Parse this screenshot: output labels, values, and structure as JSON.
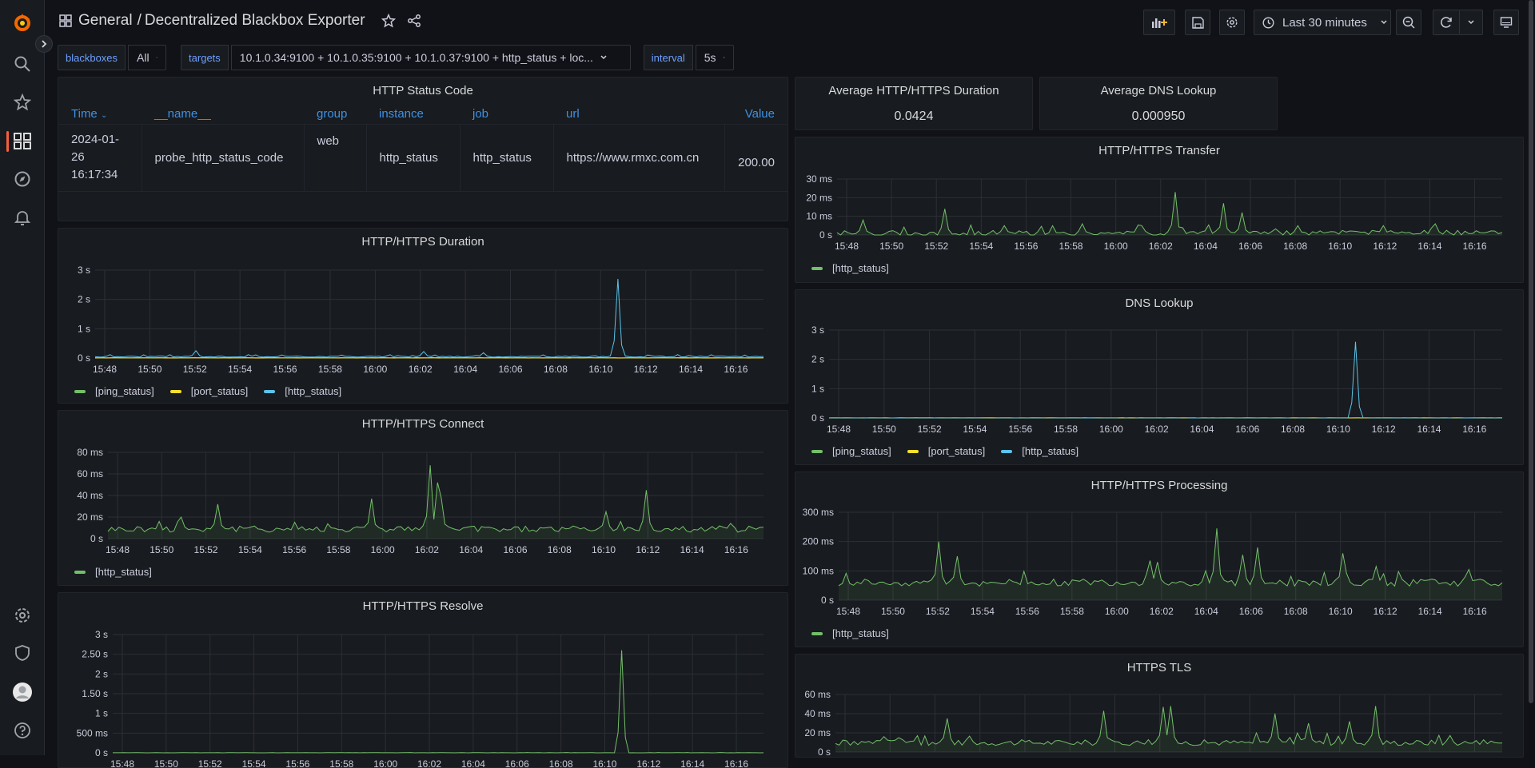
{
  "app": {
    "breadcrumb_root": "General",
    "breadcrumb_sep": "/",
    "dashboard_title": "Decentralized Blackbox Exporter",
    "time_range": "Last 30 minutes"
  },
  "variables": [
    {
      "label": "blackboxes",
      "value": "All"
    },
    {
      "label": "targets",
      "value": "10.1.0.34:9100 + 10.1.0.35:9100 + 10.1.0.37:9100 + http_status + loc..."
    },
    {
      "label": "interval",
      "value": "5s"
    }
  ],
  "colors": {
    "green": "#73bf69",
    "yellow": "#fade2a",
    "blue": "#5ac4eb",
    "accent": "#f55f3e",
    "link": "#3d91e6"
  },
  "status_table": {
    "title": "HTTP Status Code",
    "columns": [
      "Time",
      "__name__",
      "group",
      "instance",
      "job",
      "url",
      "Value"
    ],
    "rows": [
      {
        "time_line1": "2024-01-",
        "time_line2": "26",
        "time_line3": "16:17:34",
        "name": "probe_http_status_code",
        "group": "web",
        "instance": "http_status",
        "job": "http_status",
        "url": "https://www.rmxc.com.cn",
        "value": "200.00"
      }
    ]
  },
  "stats": {
    "http_duration": {
      "title": "Average HTTP/HTTPS Duration",
      "value": "0.0424"
    },
    "dns_lookup": {
      "title": "Average DNS Lookup",
      "value": "0.000950"
    }
  },
  "time_axis": [
    "15:48",
    "15:50",
    "15:52",
    "15:54",
    "15:56",
    "15:58",
    "16:00",
    "16:02",
    "16:04",
    "16:06",
    "16:08",
    "16:10",
    "16:12",
    "16:14",
    "16:16"
  ],
  "chart_data": [
    {
      "id": "duration",
      "type": "line",
      "title": "HTTP/HTTPS Duration",
      "y_ticks": [
        "3 s",
        "2 s",
        "1 s",
        "0 s"
      ],
      "ylim": [
        0,
        3
      ],
      "series": [
        {
          "name": "[ping_status]",
          "color": "#73bf69",
          "base": 0.01,
          "noise": 0.004,
          "spikes": []
        },
        {
          "name": "[port_status]",
          "color": "#fade2a",
          "base": 0.002,
          "noise": 0.001,
          "spikes": []
        },
        {
          "name": "[http_status]",
          "color": "#5ac4eb",
          "base": 0.05,
          "noise": 0.02,
          "spikes": [
            [
              0.15,
              0.25
            ],
            [
              0.37,
              0.1
            ],
            [
              0.49,
              0.22
            ],
            [
              0.58,
              0.18
            ],
            [
              0.78,
              2.7
            ],
            [
              0.83,
              0.08
            ]
          ]
        }
      ]
    },
    {
      "id": "connect",
      "type": "area",
      "title": "HTTP/HTTPS Connect",
      "y_ticks": [
        "80 ms",
        "60 ms",
        "40 ms",
        "20 ms",
        "0 s"
      ],
      "ylim": [
        0,
        80
      ],
      "series": [
        {
          "name": "[http_status]",
          "color": "#73bf69",
          "base": 9,
          "noise": 3,
          "spikes": [
            [
              0.11,
              20
            ],
            [
              0.17,
              32
            ],
            [
              0.4,
              37
            ],
            [
              0.49,
              68
            ],
            [
              0.5,
              52
            ],
            [
              0.51,
              38
            ],
            [
              0.76,
              25
            ],
            [
              0.82,
              45
            ]
          ]
        }
      ]
    },
    {
      "id": "resolve",
      "type": "line",
      "title": "HTTP/HTTPS Resolve",
      "y_ticks": [
        "3 s",
        "2.50 s",
        "2 s",
        "1.50 s",
        "1 s",
        "500 ms",
        "0 s"
      ],
      "ylim": [
        0,
        3
      ],
      "series": [
        {
          "name": "[http_status]",
          "color": "#73bf69",
          "base": 0.002,
          "noise": 0.002,
          "spikes": [
            [
              0.78,
              2.6
            ]
          ]
        }
      ]
    },
    {
      "id": "transfer",
      "type": "area",
      "title": "HTTP/HTTPS Transfer",
      "y_ticks": [
        "30 ms",
        "20 ms",
        "10 ms",
        "0 s"
      ],
      "ylim": [
        0,
        30
      ],
      "series": [
        {
          "name": "[http_status]",
          "color": "#73bf69",
          "base": 1,
          "noise": 1.5,
          "spikes": [
            [
              0.04,
              8
            ],
            [
              0.16,
              14
            ],
            [
              0.25,
              5
            ],
            [
              0.37,
              6
            ],
            [
              0.46,
              5
            ],
            [
              0.51,
              23
            ],
            [
              0.58,
              17
            ],
            [
              0.61,
              12
            ],
            [
              0.69,
              5
            ],
            [
              0.82,
              5
            ],
            [
              0.9,
              6
            ]
          ]
        }
      ]
    },
    {
      "id": "dns",
      "type": "line",
      "title": "DNS Lookup",
      "y_ticks": [
        "3 s",
        "2 s",
        "1 s",
        "0 s"
      ],
      "ylim": [
        0,
        3
      ],
      "series": [
        {
          "name": "[ping_status]",
          "color": "#73bf69",
          "base": 0.002,
          "noise": 0.001,
          "spikes": []
        },
        {
          "name": "[port_status]",
          "color": "#fade2a",
          "base": 0.001,
          "noise": 0.001,
          "spikes": []
        },
        {
          "name": "[http_status]",
          "color": "#5ac4eb",
          "base": 0.003,
          "noise": 0.002,
          "spikes": [
            [
              0.78,
              2.6
            ]
          ]
        }
      ]
    },
    {
      "id": "processing",
      "type": "area",
      "title": "HTTP/HTTPS Processing",
      "y_ticks": [
        "300 ms",
        "200 ms",
        "100 ms",
        "0 s"
      ],
      "ylim": [
        0,
        300
      ],
      "series": [
        {
          "name": "[http_status]",
          "color": "#73bf69",
          "base": 60,
          "noise": 12,
          "spikes": [
            [
              0.15,
              200
            ],
            [
              0.18,
              150
            ],
            [
              0.47,
              135
            ],
            [
              0.48,
              130
            ],
            [
              0.57,
              245
            ],
            [
              0.61,
              155
            ],
            [
              0.63,
              180
            ],
            [
              0.76,
              160
            ],
            [
              0.81,
              115
            ],
            [
              0.95,
              105
            ]
          ]
        }
      ]
    },
    {
      "id": "tls",
      "type": "area",
      "title": "HTTPS TLS",
      "y_ticks": [
        "60 ms",
        "40 ms",
        "20 ms",
        "0 s"
      ],
      "ylim": [
        0,
        60
      ],
      "series": [
        {
          "name": "[http_status]",
          "color": "#73bf69",
          "base": 10,
          "noise": 3,
          "spikes": [
            [
              0.17,
              35
            ],
            [
              0.4,
              43
            ],
            [
              0.49,
              47
            ],
            [
              0.5,
              48
            ],
            [
              0.66,
              40
            ],
            [
              0.71,
              30
            ],
            [
              0.77,
              32
            ],
            [
              0.81,
              48
            ]
          ]
        }
      ]
    }
  ]
}
